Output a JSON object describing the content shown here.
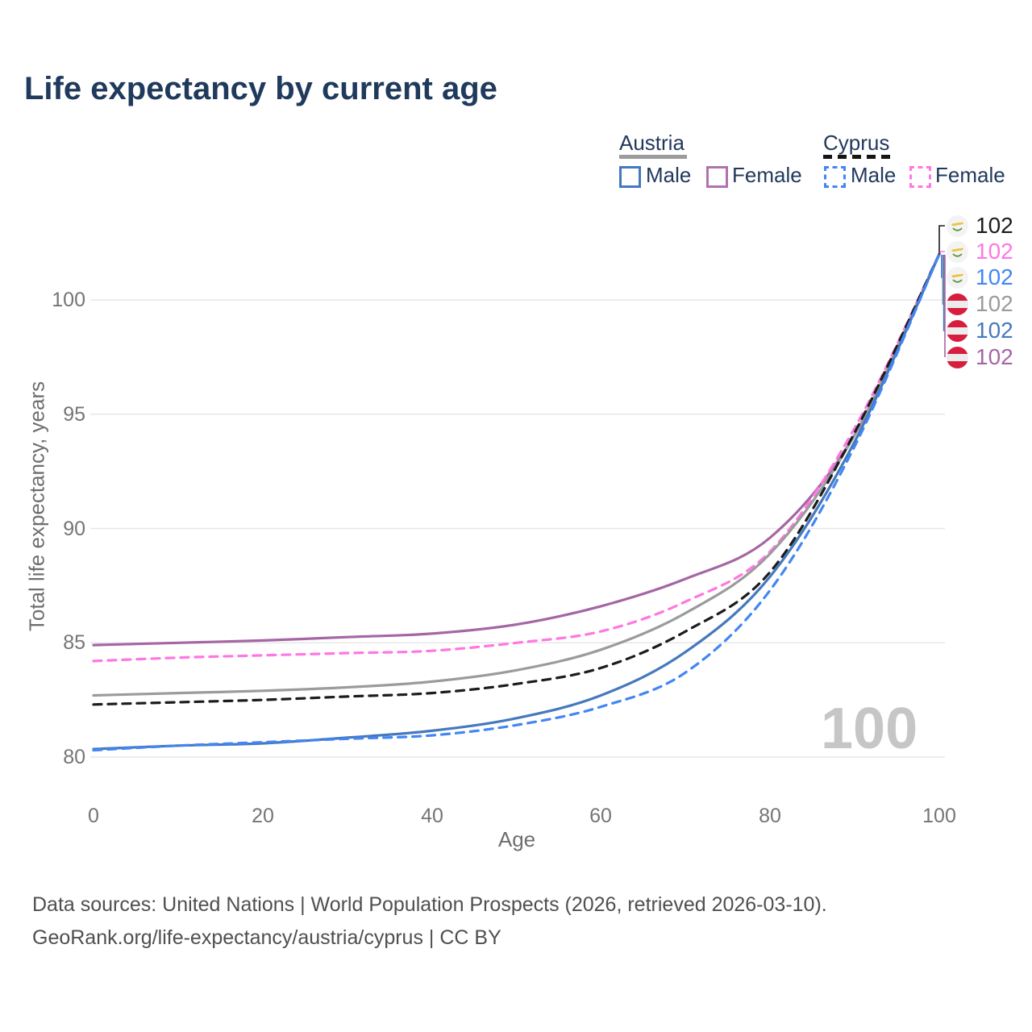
{
  "title": "Life expectancy by current age",
  "legend": {
    "austria": {
      "label": "Austria",
      "male": "Male",
      "female": "Female"
    },
    "cyprus": {
      "label": "Cyprus",
      "male": "Male",
      "female": "Female"
    }
  },
  "watermark": "100",
  "end_labels": [
    {
      "value": "102",
      "flag": "cyprus",
      "color": "#1c1c1c",
      "series": "Cyprus Total"
    },
    {
      "value": "102",
      "flag": "cyprus",
      "color": "#ff77e2",
      "series": "Cyprus Female"
    },
    {
      "value": "102",
      "flag": "cyprus",
      "color": "#4286f5",
      "series": "Cyprus Male"
    },
    {
      "value": "102",
      "flag": "austria",
      "color": "#9b9b9b",
      "series": "Austria Total"
    },
    {
      "value": "102",
      "flag": "austria",
      "color": "#4579bd",
      "series": "Austria Male"
    },
    {
      "value": "102",
      "flag": "austria",
      "color": "#a566a3",
      "series": "Austria Female"
    }
  ],
  "footer": {
    "line1": "Data sources: United Nations | World Population Prospects (2026, retrieved 2026-03-10).",
    "line2": "GeoRank.org/life-expectancy/austria/cyprus | CC BY"
  },
  "chart_data": {
    "type": "line",
    "title": "Life expectancy by current age",
    "xlabel": "Age",
    "ylabel": "Total life expectancy, years",
    "xticks": [
      0,
      20,
      40,
      60,
      80,
      100
    ],
    "yticks": [
      80,
      85,
      90,
      95,
      100
    ],
    "xlim": [
      0,
      100
    ],
    "ylim": [
      79,
      103
    ],
    "grid": "horizontal",
    "legend_position": "top-right",
    "x": [
      0,
      10,
      20,
      30,
      40,
      50,
      60,
      70,
      80,
      90,
      100
    ],
    "series": [
      {
        "name": "Austria Female",
        "country": "Austria",
        "group": "Female",
        "style": "solid",
        "color": "#a566a3",
        "values": [
          84.9,
          85.0,
          85.1,
          85.25,
          85.4,
          85.8,
          86.6,
          87.8,
          89.6,
          94.1,
          102
        ],
        "end_label": "102"
      },
      {
        "name": "Cyprus Female",
        "country": "Cyprus",
        "group": "Female",
        "style": "dashed",
        "color": "#ff77e2",
        "values": [
          84.2,
          84.35,
          84.45,
          84.55,
          84.65,
          85.0,
          85.5,
          86.8,
          89.0,
          94.4,
          102
        ],
        "end_label": "102"
      },
      {
        "name": "Austria Total",
        "country": "Austria",
        "group": "Total",
        "style": "solid",
        "color": "#9b9b9b",
        "values": [
          82.7,
          82.8,
          82.9,
          83.05,
          83.3,
          83.8,
          84.7,
          86.3,
          88.9,
          94.1,
          102
        ],
        "end_label": "102"
      },
      {
        "name": "Cyprus Total",
        "country": "Cyprus",
        "group": "Total",
        "style": "dashed",
        "color": "#1c1c1c",
        "values": [
          82.3,
          82.4,
          82.5,
          82.65,
          82.8,
          83.2,
          83.9,
          85.5,
          88.1,
          94.2,
          102
        ],
        "end_label": "102"
      },
      {
        "name": "Austria Male",
        "country": "Austria",
        "group": "Male",
        "style": "solid",
        "color": "#4579bd",
        "values": [
          80.35,
          80.5,
          80.6,
          80.85,
          81.15,
          81.7,
          82.7,
          84.6,
          87.9,
          93.8,
          102
        ],
        "end_label": "102"
      },
      {
        "name": "Cyprus Male",
        "country": "Cyprus",
        "group": "Male",
        "style": "dashed",
        "color": "#4286f5",
        "values": [
          80.3,
          80.5,
          80.65,
          80.8,
          80.95,
          81.4,
          82.2,
          83.7,
          87.3,
          93.6,
          102
        ],
        "end_label": "102"
      }
    ]
  }
}
